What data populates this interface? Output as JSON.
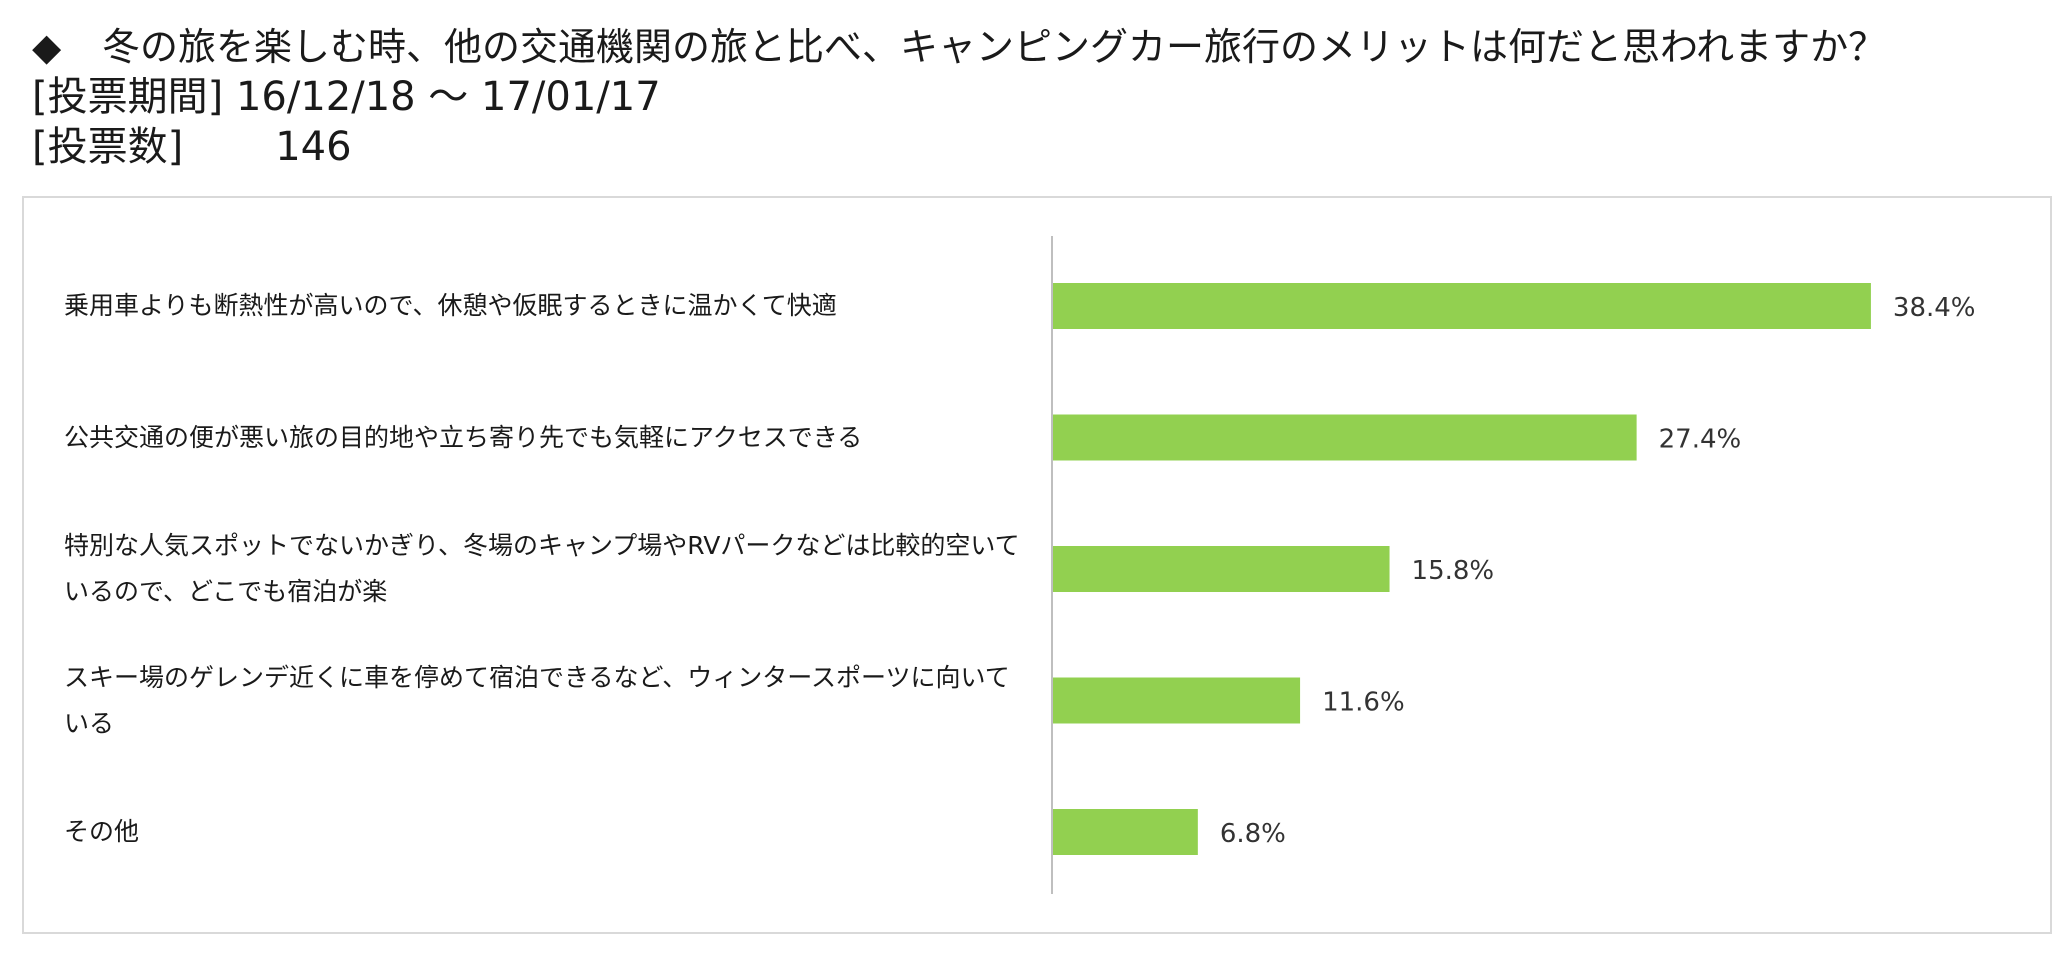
{
  "header": {
    "bullet": "◆",
    "title": "冬の旅を楽しむ時、他の交通機関の旅と比べ、キャンピングカー旅行のメリットは何だと思われますか？",
    "period_label": "[投票期間]",
    "period_value": "16/12/18 ～ 17/01/17",
    "votes_label": "[投票数]",
    "votes_value": "146"
  },
  "chart_data": {
    "type": "bar",
    "orientation": "horizontal",
    "categories": [
      "乗用車よりも断熱性が高いので、休憩や仮眠するときに温かくて快適",
      "公共交通の便が悪い旅の目的地や立ち寄り先でも気軽にアクセスできる",
      "特別な人気スポットでないかぎり、冬場のキャンプ場やRVパークなどは比較的空いているので、どこでも宿泊が楽",
      "スキー場のゲレンデ近くに車を停めて宿泊できるなど、ウィンタースポーツに向いている",
      "その他"
    ],
    "values": [
      38.4,
      27.4,
      15.8,
      11.6,
      6.8
    ],
    "value_labels": [
      "38.4%",
      "27.4%",
      "15.8%",
      "11.6%",
      "6.8%"
    ],
    "unit": "%",
    "xlim": [
      0,
      45
    ],
    "grid": false,
    "legend": "none",
    "bar_color": "#92d050"
  }
}
